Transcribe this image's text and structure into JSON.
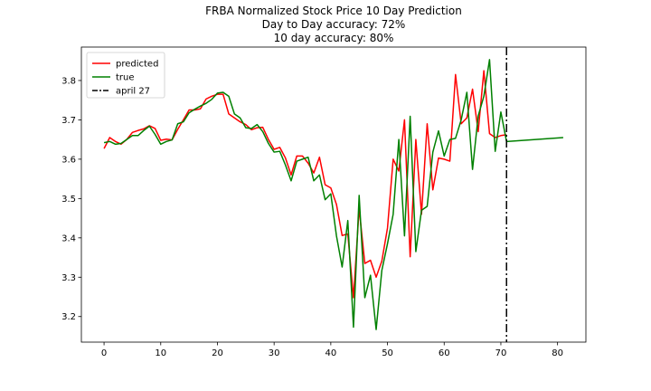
{
  "chart_data": {
    "type": "line",
    "title_lines": [
      "FRBA Normalized Stock Price 10 Day Prediction",
      "Day to Day accuracy: 72%",
      "10 day accuracy: 80%"
    ],
    "xlabel": "",
    "ylabel": "",
    "xlim": [
      -4,
      85
    ],
    "ylim": [
      3.135,
      3.885
    ],
    "xticks": [
      0,
      10,
      20,
      30,
      40,
      50,
      60,
      70,
      80
    ],
    "yticks": [
      3.2,
      3.3,
      3.4,
      3.5,
      3.6,
      3.7,
      3.8
    ],
    "grid": false,
    "legend_position": "top-left",
    "series": [
      {
        "name": "predicted",
        "color": "#ff0000",
        "x": [
          0,
          1,
          2,
          3,
          4,
          5,
          6,
          7,
          8,
          9,
          10,
          11,
          12,
          13,
          14,
          15,
          16,
          17,
          18,
          19,
          20,
          21,
          22,
          23,
          24,
          25,
          26,
          27,
          28,
          29,
          30,
          31,
          32,
          33,
          34,
          35,
          36,
          37,
          38,
          39,
          40,
          41,
          42,
          43,
          44,
          45,
          46,
          47,
          48,
          49,
          50,
          51,
          52,
          53,
          54,
          55,
          56,
          57,
          58,
          59,
          60,
          61,
          62,
          63,
          64,
          65,
          66,
          67,
          68,
          69,
          70,
          71
        ],
        "y": [
          3.627,
          3.655,
          3.645,
          3.638,
          3.65,
          3.668,
          3.673,
          3.677,
          3.685,
          3.678,
          3.648,
          3.651,
          3.649,
          3.676,
          3.7,
          3.725,
          3.725,
          3.728,
          3.753,
          3.76,
          3.765,
          3.765,
          3.715,
          3.705,
          3.695,
          3.688,
          3.675,
          3.68,
          3.681,
          3.65,
          3.625,
          3.63,
          3.603,
          3.56,
          3.608,
          3.608,
          3.59,
          3.565,
          3.605,
          3.535,
          3.527,
          3.485,
          3.406,
          3.41,
          3.248,
          3.475,
          3.335,
          3.343,
          3.3,
          3.341,
          3.425,
          3.6,
          3.57,
          3.7,
          3.352,
          3.65,
          3.46,
          3.69,
          3.522,
          3.603,
          3.6,
          3.595,
          3.815,
          3.69,
          3.705,
          3.778,
          3.67,
          3.825,
          3.665,
          3.655,
          3.66,
          3.662
        ]
      },
      {
        "name": "true",
        "color": "#008000",
        "x": [
          0,
          1,
          2,
          3,
          4,
          5,
          6,
          7,
          8,
          9,
          10,
          11,
          12,
          13,
          14,
          15,
          16,
          17,
          18,
          19,
          20,
          21,
          22,
          23,
          24,
          25,
          26,
          27,
          28,
          29,
          30,
          31,
          32,
          33,
          34,
          35,
          36,
          37,
          38,
          39,
          40,
          41,
          42,
          43,
          44,
          45,
          46,
          47,
          48,
          49,
          50,
          51,
          52,
          53,
          54,
          55,
          56,
          57,
          58,
          59,
          60,
          61,
          62,
          63,
          64,
          65,
          66,
          67,
          68,
          69,
          70,
          71,
          81
        ],
        "y": [
          3.642,
          3.645,
          3.638,
          3.64,
          3.65,
          3.66,
          3.66,
          3.673,
          3.684,
          3.663,
          3.638,
          3.645,
          3.649,
          3.69,
          3.695,
          3.718,
          3.727,
          3.735,
          3.742,
          3.752,
          3.768,
          3.77,
          3.76,
          3.715,
          3.705,
          3.68,
          3.678,
          3.688,
          3.67,
          3.64,
          3.618,
          3.62,
          3.585,
          3.545,
          3.595,
          3.6,
          3.605,
          3.545,
          3.56,
          3.497,
          3.512,
          3.405,
          3.326,
          3.444,
          3.173,
          3.508,
          3.248,
          3.305,
          3.167,
          3.317,
          3.385,
          3.46,
          3.65,
          3.405,
          3.709,
          3.365,
          3.47,
          3.48,
          3.618,
          3.672,
          3.608,
          3.65,
          3.653,
          3.7,
          3.77,
          3.574,
          3.71,
          3.76,
          3.853,
          3.62,
          3.72,
          3.645,
          3.655
        ]
      }
    ],
    "vline": {
      "x": 71,
      "label": "april 27",
      "color": "#000000",
      "style": "dashdot"
    }
  }
}
